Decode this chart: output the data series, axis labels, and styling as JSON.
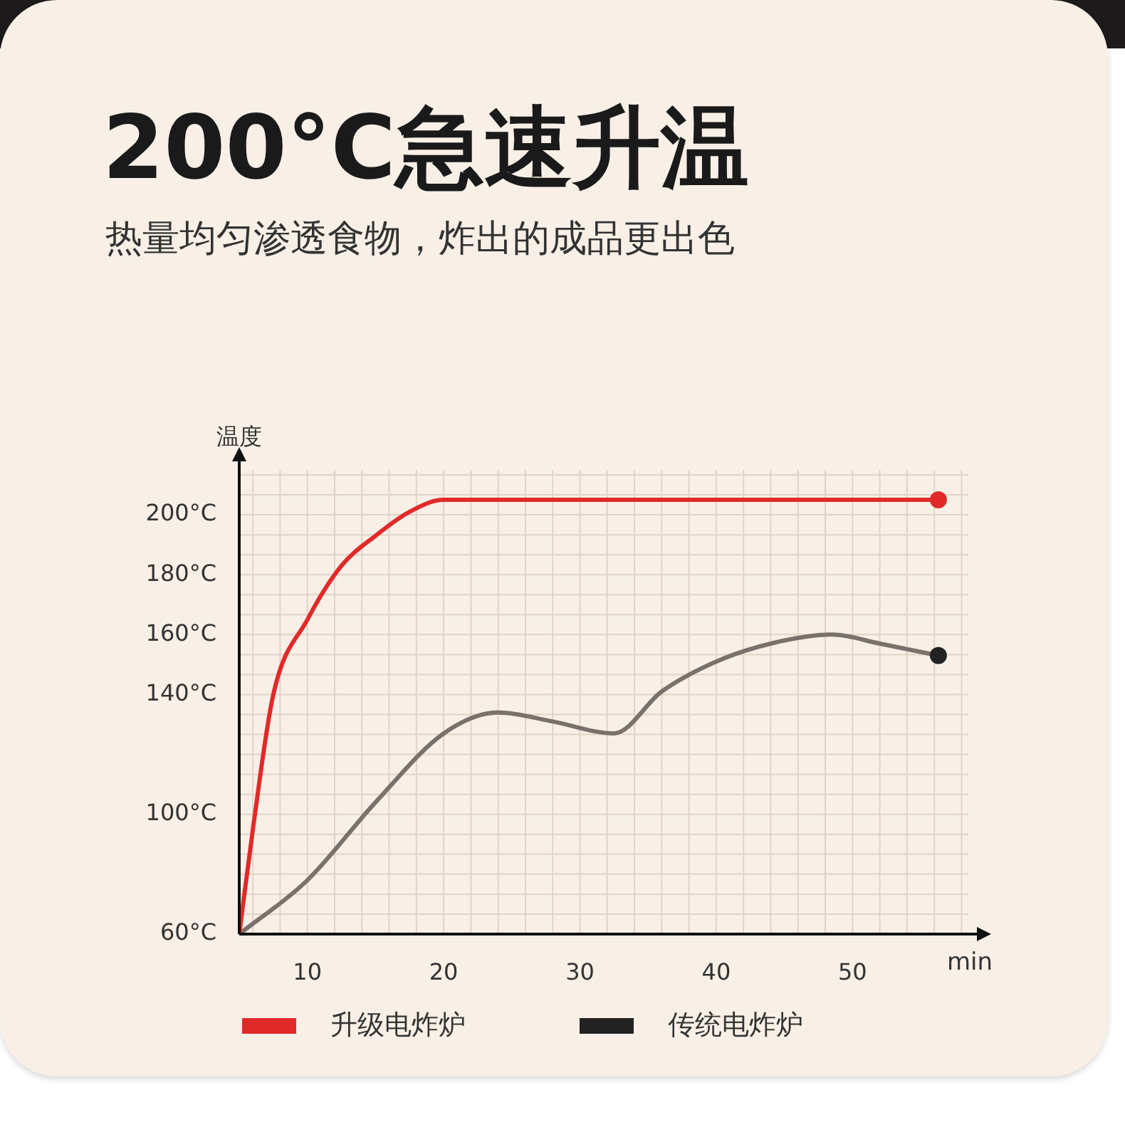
{
  "chart_data": {
    "type": "line",
    "title": "200°C急速升温",
    "subtitle": "热量均匀渗透食物，炸出的成品更出色",
    "ylabel": "温度",
    "xlabel": "min",
    "xlim": [
      5,
      58.5
    ],
    "xticks": [
      10,
      20,
      30,
      40,
      50
    ],
    "ylim": [
      60,
      215
    ],
    "yticks": [
      {
        "value": 60,
        "label": "60°C"
      },
      {
        "value": 100,
        "label": "100°C"
      },
      {
        "value": 140,
        "label": "140°C"
      },
      {
        "value": 160,
        "label": "160°C"
      },
      {
        "value": 180,
        "label": "180°C"
      },
      {
        "value": 200,
        "label": "200°C"
      }
    ],
    "grid": true,
    "legend": "bottom",
    "marker": "none",
    "line_style": "solid",
    "series": [
      {
        "name": "升级电炸炉",
        "color": "#e02a2a",
        "x": [
          5,
          6,
          7.5,
          10,
          12.5,
          15,
          17.5,
          20,
          56.3
        ],
        "values": [
          60,
          95,
          140,
          165,
          183,
          193,
          201,
          205,
          205
        ]
      },
      {
        "name": "传统电炸炉",
        "color": "#7a716c",
        "x": [
          5,
          10,
          15,
          20,
          24,
          28,
          32.5,
          36,
          40,
          44,
          48.5,
          52,
          56.3
        ],
        "values": [
          60,
          78,
          104,
          127,
          134,
          131,
          127,
          141,
          151,
          157,
          160,
          157,
          153
        ]
      }
    ]
  }
}
